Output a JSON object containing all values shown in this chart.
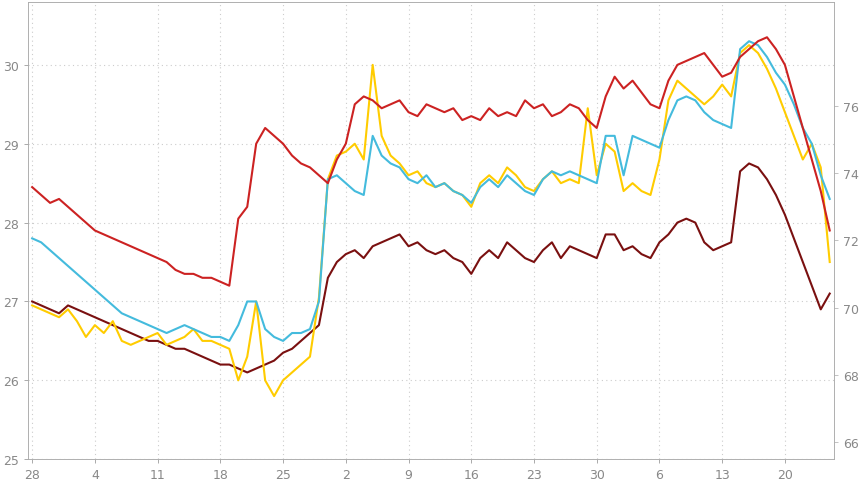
{
  "title": "",
  "x_labels": [
    "28",
    "4",
    "11",
    "18",
    "25",
    "2",
    "9",
    "16",
    "23",
    "30",
    "6",
    "13",
    "20"
  ],
  "x_label_colors": [
    "#555555",
    "#555555",
    "#cc2222",
    "#555555",
    "#555555",
    "#555555",
    "#555555",
    "#555555",
    "#555555",
    "#555555",
    "#555555",
    "#555555",
    "#555555"
  ],
  "ylim_left": [
    25.0,
    30.8
  ],
  "ylim_right": [
    65.5,
    79.08
  ],
  "yticks_left": [
    25,
    26,
    27,
    28,
    29,
    30
  ],
  "yticks_right": [
    66,
    68,
    70,
    72,
    74,
    76
  ],
  "grid_color": "#cccccc",
  "bg_color": "#ffffff",
  "series": {
    "red": {
      "color": "#cc2222",
      "linewidth": 1.5,
      "values": [
        28.45,
        28.35,
        28.25,
        28.3,
        28.2,
        28.1,
        28.0,
        27.9,
        27.85,
        27.8,
        27.75,
        27.7,
        27.65,
        27.6,
        27.55,
        27.5,
        27.4,
        27.35,
        27.35,
        27.3,
        27.3,
        27.25,
        27.2,
        28.05,
        28.2,
        29.0,
        29.2,
        29.1,
        29.0,
        28.85,
        28.75,
        28.7,
        28.6,
        28.5,
        28.8,
        29.0,
        29.5,
        29.6,
        29.55,
        29.45,
        29.5,
        29.55,
        29.4,
        29.35,
        29.5,
        29.45,
        29.4,
        29.45,
        29.3,
        29.35,
        29.3,
        29.45,
        29.35,
        29.4,
        29.35,
        29.55,
        29.45,
        29.5,
        29.35,
        29.4,
        29.5,
        29.45,
        29.3,
        29.2,
        29.6,
        29.85,
        29.7,
        29.8,
        29.65,
        29.5,
        29.45,
        29.8,
        30.0,
        30.05,
        30.1,
        30.15,
        30.0,
        29.85,
        29.9,
        30.1,
        30.2,
        30.3,
        30.35,
        30.2,
        30.0,
        29.6,
        29.2,
        28.8,
        28.4,
        27.9
      ]
    },
    "cyan": {
      "color": "#44bbdd",
      "linewidth": 1.5,
      "values": [
        27.8,
        27.75,
        27.65,
        27.55,
        27.45,
        27.35,
        27.25,
        27.15,
        27.05,
        26.95,
        26.85,
        26.8,
        26.75,
        26.7,
        26.65,
        26.6,
        26.65,
        26.7,
        26.65,
        26.6,
        26.55,
        26.55,
        26.5,
        26.7,
        27.0,
        27.0,
        26.65,
        26.55,
        26.5,
        26.6,
        26.6,
        26.65,
        27.0,
        28.55,
        28.6,
        28.5,
        28.4,
        28.35,
        29.1,
        28.85,
        28.75,
        28.7,
        28.55,
        28.5,
        28.6,
        28.45,
        28.5,
        28.4,
        28.35,
        28.25,
        28.45,
        28.55,
        28.45,
        28.6,
        28.5,
        28.4,
        28.35,
        28.55,
        28.65,
        28.6,
        28.65,
        28.6,
        28.55,
        28.5,
        29.1,
        29.1,
        28.6,
        29.1,
        29.05,
        29.0,
        28.95,
        29.3,
        29.55,
        29.6,
        29.55,
        29.4,
        29.3,
        29.25,
        29.2,
        30.2,
        30.3,
        30.25,
        30.1,
        29.9,
        29.75,
        29.5,
        29.2,
        29.0,
        28.6,
        28.3
      ]
    },
    "yellow": {
      "color": "#ffcc00",
      "linewidth": 1.5,
      "values": [
        26.95,
        26.9,
        26.85,
        26.8,
        26.9,
        26.75,
        26.55,
        26.7,
        26.6,
        26.75,
        26.5,
        26.45,
        26.5,
        26.55,
        26.6,
        26.45,
        26.5,
        26.55,
        26.65,
        26.5,
        26.5,
        26.45,
        26.4,
        26.0,
        26.3,
        27.0,
        26.0,
        25.8,
        26.0,
        26.1,
        26.2,
        26.3,
        27.05,
        28.55,
        28.85,
        28.9,
        29.0,
        28.8,
        30.0,
        29.1,
        28.85,
        28.75,
        28.6,
        28.65,
        28.5,
        28.45,
        28.5,
        28.4,
        28.35,
        28.2,
        28.5,
        28.6,
        28.5,
        28.7,
        28.6,
        28.45,
        28.4,
        28.55,
        28.65,
        28.5,
        28.55,
        28.5,
        29.45,
        28.6,
        29.0,
        28.9,
        28.4,
        28.5,
        28.4,
        28.35,
        28.8,
        29.55,
        29.8,
        29.7,
        29.6,
        29.5,
        29.6,
        29.75,
        29.6,
        30.15,
        30.25,
        30.15,
        29.95,
        29.7,
        29.4,
        29.1,
        28.8,
        29.0,
        28.7,
        27.5
      ]
    },
    "darkred": {
      "color": "#7a1010",
      "linewidth": 1.5,
      "values": [
        27.0,
        26.95,
        26.9,
        26.85,
        26.95,
        26.9,
        26.85,
        26.8,
        26.75,
        26.7,
        26.65,
        26.6,
        26.55,
        26.5,
        26.5,
        26.45,
        26.4,
        26.4,
        26.35,
        26.3,
        26.25,
        26.2,
        26.2,
        26.15,
        26.1,
        26.15,
        26.2,
        26.25,
        26.35,
        26.4,
        26.5,
        26.6,
        26.7,
        27.3,
        27.5,
        27.6,
        27.65,
        27.55,
        27.7,
        27.75,
        27.8,
        27.85,
        27.7,
        27.75,
        27.65,
        27.6,
        27.65,
        27.55,
        27.5,
        27.35,
        27.55,
        27.65,
        27.55,
        27.75,
        27.65,
        27.55,
        27.5,
        27.65,
        27.75,
        27.55,
        27.7,
        27.65,
        27.6,
        27.55,
        27.85,
        27.85,
        27.65,
        27.7,
        27.6,
        27.55,
        27.75,
        27.85,
        28.0,
        28.05,
        28.0,
        27.75,
        27.65,
        27.7,
        27.75,
        28.65,
        28.75,
        28.7,
        28.55,
        28.35,
        28.1,
        27.8,
        27.5,
        27.2,
        26.9,
        27.1
      ]
    }
  },
  "n_points": 90,
  "x_tick_positions": [
    0,
    7,
    14,
    21,
    28,
    35,
    42,
    49,
    56,
    63,
    70,
    77,
    84
  ],
  "spine_color": "#aaaaaa",
  "tick_color": "#aaaaaa"
}
